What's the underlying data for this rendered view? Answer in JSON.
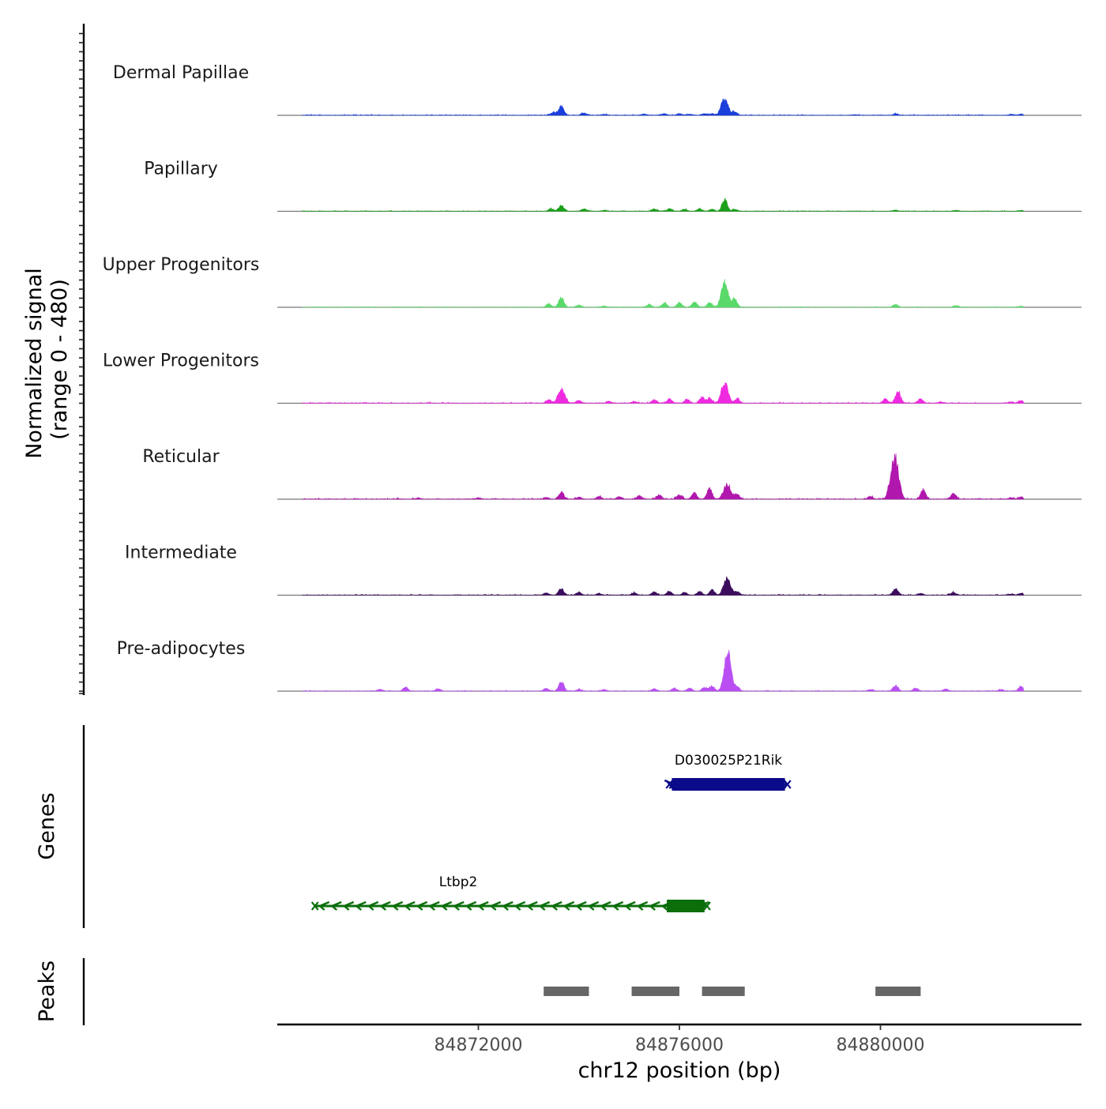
{
  "chart_data": {
    "type": "area",
    "title": "",
    "chromosome": "chr12",
    "xlabel": "chr12 position (bp)",
    "xlim": [
      84868000,
      84884000
    ],
    "x_ticks": [
      84872000,
      84876000,
      84880000
    ],
    "x_tick_labels": [
      "84872000",
      "84876000",
      "84880000"
    ],
    "signal_ylabel_line1": "Normalized signal",
    "signal_ylabel_line2": "(range 0 - 480)",
    "ylim": [
      0,
      480
    ],
    "genes_label": "Genes",
    "peaks_label": "Peaks",
    "tracks": [
      {
        "name": "Dermal Papillae",
        "color": "#1a3fdb",
        "peaks": [
          [
            84873650,
            210
          ],
          [
            84873500,
            70
          ],
          [
            84874100,
            55
          ],
          [
            84874500,
            25
          ],
          [
            84875300,
            30
          ],
          [
            84875700,
            40
          ],
          [
            84876000,
            35
          ],
          [
            84876200,
            25
          ],
          [
            84876500,
            40
          ],
          [
            84876650,
            35
          ],
          [
            84876900,
            400
          ],
          [
            84877100,
            80
          ],
          [
            84879500,
            15
          ],
          [
            84880300,
            30
          ],
          [
            84882600,
            20
          ],
          [
            84882800,
            30
          ]
        ],
        "noise": 6
      },
      {
        "name": "Papillary",
        "color": "#1aa01a",
        "peaks": [
          [
            84873650,
            140
          ],
          [
            84873450,
            60
          ],
          [
            84874100,
            55
          ],
          [
            84874500,
            20
          ],
          [
            84875500,
            55
          ],
          [
            84875800,
            60
          ],
          [
            84876100,
            45
          ],
          [
            84876400,
            55
          ],
          [
            84876650,
            50
          ],
          [
            84876900,
            280
          ],
          [
            84877100,
            50
          ],
          [
            84880300,
            25
          ],
          [
            84881500,
            20
          ],
          [
            84882800,
            25
          ]
        ],
        "noise": 5
      },
      {
        "name": "Upper Progenitors",
        "color": "#5ad96a",
        "peaks": [
          [
            84873650,
            240
          ],
          [
            84873400,
            80
          ],
          [
            84874000,
            50
          ],
          [
            84874500,
            30
          ],
          [
            84875400,
            70
          ],
          [
            84875700,
            110
          ],
          [
            84876000,
            110
          ],
          [
            84876300,
            130
          ],
          [
            84876600,
            110
          ],
          [
            84876900,
            570
          ],
          [
            84877100,
            200
          ],
          [
            84880300,
            60
          ],
          [
            84881500,
            40
          ],
          [
            84882800,
            25
          ]
        ],
        "noise": 4
      },
      {
        "name": "Lower Progenitors",
        "color": "#ef2be0",
        "peaks": [
          [
            84873650,
            320
          ],
          [
            84873400,
            80
          ],
          [
            84874000,
            55
          ],
          [
            84874600,
            40
          ],
          [
            84875100,
            40
          ],
          [
            84875500,
            80
          ],
          [
            84875800,
            100
          ],
          [
            84876150,
            90
          ],
          [
            84876450,
            140
          ],
          [
            84876600,
            120
          ],
          [
            84876900,
            460
          ],
          [
            84877150,
            100
          ],
          [
            84880100,
            100
          ],
          [
            84880350,
            300
          ],
          [
            84880800,
            110
          ],
          [
            84881200,
            30
          ],
          [
            84882600,
            30
          ],
          [
            84882800,
            70
          ]
        ],
        "noise": 7
      },
      {
        "name": "Reticular",
        "color": "#b018ad",
        "peaks": [
          [
            84870800,
            25
          ],
          [
            84872000,
            30
          ],
          [
            84873650,
            160
          ],
          [
            84873350,
            40
          ],
          [
            84874000,
            45
          ],
          [
            84874400,
            55
          ],
          [
            84874800,
            55
          ],
          [
            84875200,
            80
          ],
          [
            84875600,
            95
          ],
          [
            84876000,
            100
          ],
          [
            84876300,
            150
          ],
          [
            84876600,
            260
          ],
          [
            84876950,
            380
          ],
          [
            84877150,
            110
          ],
          [
            84879800,
            60
          ],
          [
            84880300,
            920
          ],
          [
            84880200,
            300
          ],
          [
            84880850,
            220
          ],
          [
            84881450,
            140
          ],
          [
            84882600,
            30
          ],
          [
            84882800,
            50
          ]
        ],
        "noise": 8
      },
      {
        "name": "Intermediate",
        "color": "#3c0d5e",
        "peaks": [
          [
            84873650,
            150
          ],
          [
            84873350,
            50
          ],
          [
            84874000,
            70
          ],
          [
            84874400,
            40
          ],
          [
            84875100,
            50
          ],
          [
            84875500,
            80
          ],
          [
            84875800,
            90
          ],
          [
            84876100,
            60
          ],
          [
            84876400,
            80
          ],
          [
            84876650,
            120
          ],
          [
            84876950,
            380
          ],
          [
            84877150,
            80
          ],
          [
            84880300,
            150
          ],
          [
            84880800,
            40
          ],
          [
            84881450,
            60
          ],
          [
            84882600,
            25
          ],
          [
            84882800,
            50
          ]
        ],
        "noise": 6
      },
      {
        "name": "Pre-adipocytes",
        "color": "#b94ff2",
        "peaks": [
          [
            84870050,
            40
          ],
          [
            84870550,
            90
          ],
          [
            84871200,
            50
          ],
          [
            84873350,
            60
          ],
          [
            84873650,
            230
          ],
          [
            84874000,
            45
          ],
          [
            84874500,
            35
          ],
          [
            84875500,
            60
          ],
          [
            84875900,
            70
          ],
          [
            84876200,
            70
          ],
          [
            84876500,
            90
          ],
          [
            84876650,
            120
          ],
          [
            84876960,
            900
          ],
          [
            84877150,
            90
          ],
          [
            84879800,
            40
          ],
          [
            84880300,
            140
          ],
          [
            84880700,
            70
          ],
          [
            84881300,
            50
          ],
          [
            84882400,
            40
          ],
          [
            84882800,
            110
          ]
        ],
        "noise": 5
      }
    ],
    "genes": [
      {
        "name": "D030025P21Rik",
        "start": 84875800,
        "end": 84878150,
        "strand": "+",
        "color": "#0a0a8a",
        "exon_start": 84875850,
        "exon_end": 84878100,
        "exon_height": 16
      },
      {
        "name": "Ltbp2",
        "start": 84868750,
        "end": 84876550,
        "strand": "-",
        "color": "#0b6e0b",
        "exon_start": 84875750,
        "exon_end": 84876500,
        "exon_height": 16
      }
    ],
    "peaks_regions": [
      [
        84873300,
        84874200
      ],
      [
        84875050,
        84876000
      ],
      [
        84876450,
        84877300
      ],
      [
        84879900,
        84880800
      ]
    ],
    "peak_color": "#666666"
  }
}
